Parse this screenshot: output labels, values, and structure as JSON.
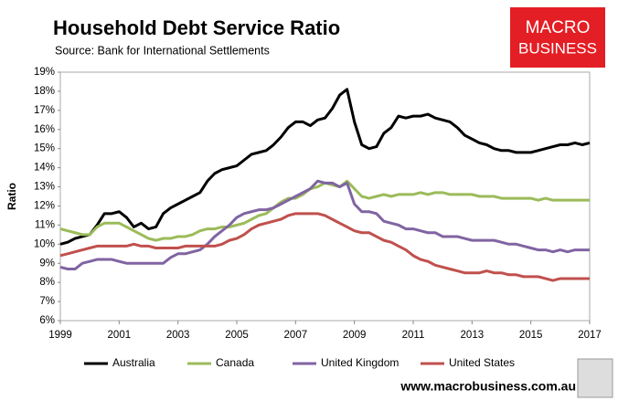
{
  "chart_data": {
    "type": "line",
    "title": "Household Debt Service Ratio",
    "subtitle": "Source: Bank for International Settlements",
    "y_label": "Ratio",
    "logo_text": [
      "MACRO",
      "BUSINESS"
    ],
    "footer": "www.macrobusiness.com.au",
    "x": [
      1999,
      1999.25,
      1999.5,
      1999.75,
      2000,
      2000.25,
      2000.5,
      2000.75,
      2001,
      2001.25,
      2001.5,
      2001.75,
      2002,
      2002.25,
      2002.5,
      2002.75,
      2003,
      2003.25,
      2003.5,
      2003.75,
      2004,
      2004.25,
      2004.5,
      2004.75,
      2005,
      2005.25,
      2005.5,
      2005.75,
      2006,
      2006.25,
      2006.5,
      2006.75,
      2007,
      2007.25,
      2007.5,
      2007.75,
      2008,
      2008.25,
      2008.5,
      2008.75,
      2009,
      2009.25,
      2009.5,
      2009.75,
      2010,
      2010.25,
      2010.5,
      2010.75,
      2011,
      2011.25,
      2011.5,
      2011.75,
      2012,
      2012.25,
      2012.5,
      2012.75,
      2013,
      2013.25,
      2013.5,
      2013.75,
      2014,
      2014.25,
      2014.5,
      2014.75,
      2015,
      2015.25,
      2015.5,
      2015.75,
      2016,
      2016.25,
      2016.5,
      2016.75,
      2017
    ],
    "series": [
      {
        "name": "Australia",
        "color": "#000000",
        "values": [
          10.0,
          10.1,
          10.3,
          10.4,
          10.5,
          11.0,
          11.6,
          11.6,
          11.7,
          11.4,
          10.9,
          11.1,
          10.8,
          10.9,
          11.6,
          11.9,
          12.1,
          12.3,
          12.5,
          12.7,
          13.3,
          13.7,
          13.9,
          14.0,
          14.1,
          14.4,
          14.7,
          14.8,
          14.9,
          15.2,
          15.6,
          16.1,
          16.4,
          16.4,
          16.2,
          16.5,
          16.6,
          17.1,
          17.8,
          18.1,
          16.4,
          15.2,
          15.0,
          15.1,
          15.8,
          16.1,
          16.7,
          16.6,
          16.7,
          16.7,
          16.8,
          16.6,
          16.5,
          16.4,
          16.1,
          15.7,
          15.5,
          15.3,
          15.2,
          15.0,
          14.9,
          14.9,
          14.8,
          14.8,
          14.8,
          14.9,
          15.0,
          15.1,
          15.2,
          15.2,
          15.3,
          15.2,
          15.3
        ]
      },
      {
        "name": "Canada",
        "color": "#9bbb59",
        "values": [
          10.8,
          10.7,
          10.6,
          10.5,
          10.5,
          10.9,
          11.1,
          11.1,
          11.1,
          10.9,
          10.7,
          10.5,
          10.3,
          10.2,
          10.3,
          10.3,
          10.4,
          10.4,
          10.5,
          10.7,
          10.8,
          10.8,
          10.9,
          10.9,
          11.0,
          11.1,
          11.3,
          11.5,
          11.6,
          11.9,
          12.2,
          12.4,
          12.4,
          12.6,
          12.9,
          13.0,
          13.2,
          13.1,
          13.0,
          13.3,
          12.9,
          12.5,
          12.4,
          12.5,
          12.6,
          12.5,
          12.6,
          12.6,
          12.6,
          12.7,
          12.6,
          12.7,
          12.7,
          12.6,
          12.6,
          12.6,
          12.6,
          12.5,
          12.5,
          12.5,
          12.4,
          12.4,
          12.4,
          12.4,
          12.4,
          12.3,
          12.4,
          12.3,
          12.3,
          12.3,
          12.3,
          12.3,
          12.3
        ]
      },
      {
        "name": "United Kingdom",
        "color": "#8064a2",
        "values": [
          8.8,
          8.7,
          8.7,
          9.0,
          9.1,
          9.2,
          9.2,
          9.2,
          9.1,
          9.0,
          9.0,
          9.0,
          9.0,
          9.0,
          9.0,
          9.3,
          9.5,
          9.5,
          9.6,
          9.7,
          10.0,
          10.4,
          10.7,
          11.0,
          11.4,
          11.6,
          11.7,
          11.8,
          11.8,
          11.9,
          12.1,
          12.3,
          12.5,
          12.7,
          12.9,
          13.3,
          13.2,
          13.2,
          13.0,
          13.2,
          12.1,
          11.7,
          11.7,
          11.6,
          11.2,
          11.1,
          11.0,
          10.8,
          10.8,
          10.7,
          10.6,
          10.6,
          10.4,
          10.4,
          10.4,
          10.3,
          10.2,
          10.2,
          10.2,
          10.2,
          10.1,
          10.0,
          10.0,
          9.9,
          9.8,
          9.7,
          9.7,
          9.6,
          9.7,
          9.6,
          9.7,
          9.7,
          9.7
        ]
      },
      {
        "name": "United States",
        "color": "#c0504d",
        "values": [
          9.4,
          9.5,
          9.6,
          9.7,
          9.8,
          9.9,
          9.9,
          9.9,
          9.9,
          9.9,
          10.0,
          9.9,
          9.9,
          9.8,
          9.8,
          9.8,
          9.8,
          9.9,
          9.9,
          9.9,
          9.9,
          9.9,
          10.0,
          10.2,
          10.3,
          10.5,
          10.8,
          11.0,
          11.1,
          11.2,
          11.3,
          11.5,
          11.6,
          11.6,
          11.6,
          11.6,
          11.5,
          11.3,
          11.1,
          10.9,
          10.7,
          10.6,
          10.6,
          10.4,
          10.2,
          10.1,
          9.9,
          9.7,
          9.4,
          9.2,
          9.1,
          8.9,
          8.8,
          8.7,
          8.6,
          8.5,
          8.5,
          8.5,
          8.6,
          8.5,
          8.5,
          8.4,
          8.4,
          8.3,
          8.3,
          8.3,
          8.2,
          8.1,
          8.2,
          8.2,
          8.2,
          8.2,
          8.2
        ]
      }
    ],
    "xlim": [
      1999,
      2017
    ],
    "xticks": [
      1999,
      2001,
      2003,
      2005,
      2007,
      2009,
      2011,
      2013,
      2015,
      2017
    ],
    "ylim": [
      6,
      19
    ],
    "yticks": [
      {
        "value": 6,
        "label": "6%"
      },
      {
        "value": 7,
        "label": "7%"
      },
      {
        "value": 8,
        "label": "8%"
      },
      {
        "value": 9,
        "label": "9%"
      },
      {
        "value": 10,
        "label": "10%"
      },
      {
        "value": 11,
        "label": "11%"
      },
      {
        "value": 12,
        "label": "12%"
      },
      {
        "value": 13,
        "label": "13%"
      },
      {
        "value": 14,
        "label": "14%"
      },
      {
        "value": 15,
        "label": "15%"
      },
      {
        "value": 16,
        "label": "16%"
      },
      {
        "value": 17,
        "label": "17%"
      },
      {
        "value": 18,
        "label": "18%"
      },
      {
        "value": 19,
        "label": "19%"
      }
    ],
    "grid": false,
    "legend": "bottom"
  }
}
